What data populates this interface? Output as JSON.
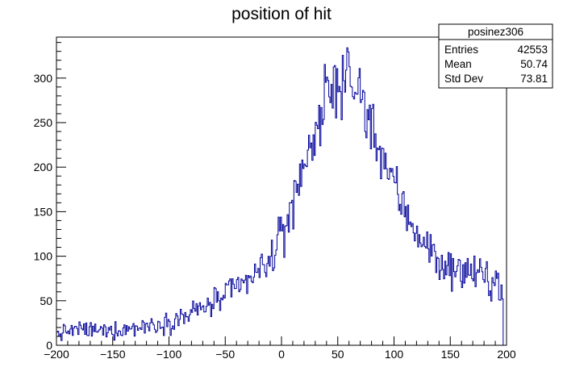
{
  "chart_data": {
    "type": "histogram",
    "title": "position of hit",
    "xlabel": "",
    "ylabel": "",
    "xlim": [
      -200,
      200
    ],
    "ylim": [
      0,
      346
    ],
    "bin_width": 1,
    "grid": false,
    "line_color": "#000099",
    "x_ticks": [
      -200,
      -150,
      -100,
      -50,
      0,
      50,
      100,
      150,
      200
    ],
    "x_tick_labels": [
      "−200",
      "−150",
      "−100",
      "−50",
      "0",
      "50",
      "100",
      "150",
      "200"
    ],
    "y_ticks": [
      0,
      50,
      100,
      150,
      200,
      250,
      300
    ],
    "y_tick_labels": [
      "0",
      "50",
      "100",
      "150",
      "200",
      "250",
      "300"
    ],
    "profile_points": [
      [
        -200,
        12
      ],
      [
        -190,
        16
      ],
      [
        -180,
        18
      ],
      [
        -170,
        17
      ],
      [
        -160,
        16
      ],
      [
        -150,
        17
      ],
      [
        -140,
        18
      ],
      [
        -130,
        20
      ],
      [
        -120,
        22
      ],
      [
        -110,
        24
      ],
      [
        -100,
        27
      ],
      [
        -90,
        31
      ],
      [
        -80,
        36
      ],
      [
        -70,
        42
      ],
      [
        -60,
        48
      ],
      [
        -50,
        55
      ],
      [
        -40,
        63
      ],
      [
        -30,
        72
      ],
      [
        -20,
        82
      ],
      [
        -10,
        96
      ],
      [
        0,
        120
      ],
      [
        10,
        160
      ],
      [
        20,
        205
      ],
      [
        30,
        240
      ],
      [
        40,
        275
      ],
      [
        50,
        298
      ],
      [
        60,
        306
      ],
      [
        65,
        300
      ],
      [
        70,
        280
      ],
      [
        80,
        250
      ],
      [
        90,
        215
      ],
      [
        100,
        180
      ],
      [
        110,
        150
      ],
      [
        120,
        130
      ],
      [
        130,
        110
      ],
      [
        140,
        95
      ],
      [
        150,
        88
      ],
      [
        160,
        84
      ],
      [
        170,
        80
      ],
      [
        180,
        76
      ],
      [
        190,
        72
      ],
      [
        196,
        68
      ],
      [
        197,
        10
      ]
    ],
    "stats_box": {
      "name": "posinez306",
      "rows": [
        {
          "label": "Entries",
          "value": "42553"
        },
        {
          "label": "Mean",
          "value": "50.74"
        },
        {
          "label": "Std Dev",
          "value": "73.81"
        }
      ]
    }
  }
}
